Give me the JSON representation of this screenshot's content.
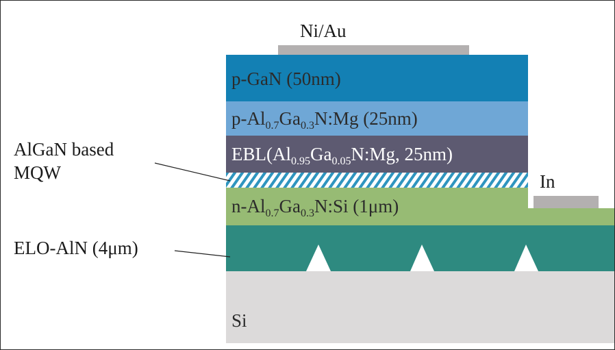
{
  "diagram": {
    "colors": {
      "p_gan": "#1380b4",
      "p_algan": "#6fa7d6",
      "ebl": "#5d5a71",
      "mqw_stripe": "#2f95bf",
      "n_algan": "#97bb74",
      "elo_aln": "#2e8a80",
      "si": "#dcdada",
      "contact": "#b3b0b0",
      "leader_line": "#222222"
    },
    "contacts": {
      "top": "Ni/Au",
      "side": "In"
    },
    "layers": {
      "p_gan": {
        "text": "p-GaN (50nm)"
      },
      "p_algan": {
        "p1": "p-Al",
        "s1": "0.7",
        "p2": "Ga",
        "s2": "0.3",
        "p3": "N:Mg (25nm)"
      },
      "ebl": {
        "p1": "EBL(Al",
        "s1": "0.95",
        "p2": "Ga",
        "s2": "0.05",
        "p3": "N:Mg, 25nm)"
      },
      "n_algan": {
        "p1": "n-Al",
        "s1": "0.7",
        "p2": "Ga",
        "s2": "0.3",
        "p3": "N:Si (1μm)"
      },
      "si": {
        "text": "Si"
      }
    },
    "callouts": {
      "mqw_line1": "AlGaN based",
      "mqw_line2": "MQW",
      "elo": "ELO-AlN (4μm)"
    }
  }
}
